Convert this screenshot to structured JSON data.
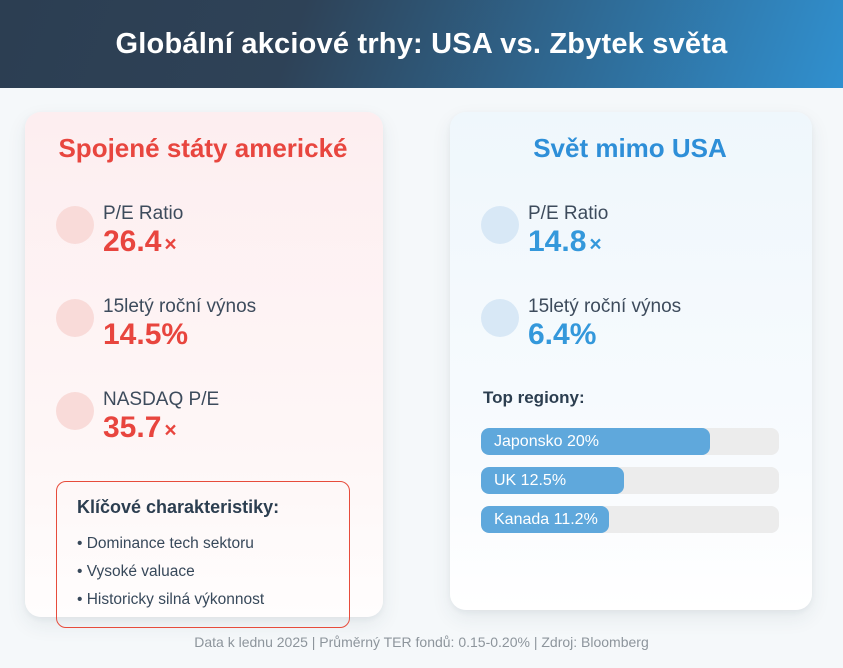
{
  "header": {
    "title": "Globální akciové trhy: USA vs. Zbytek světa"
  },
  "usa_card": {
    "title": "Spojené státy americké",
    "accent_color": "#e8453e",
    "circle_color": "#f9dbd9",
    "stats": [
      {
        "label": "P/E Ratio",
        "value": "26.4",
        "suffix": "×"
      },
      {
        "label": "15letý roční výnos",
        "value": "14.5%",
        "suffix": ""
      },
      {
        "label": "NASDAQ P/E",
        "value": "35.7",
        "suffix": "×"
      }
    ],
    "keybox": {
      "title": "Klíčové charakteristiky:",
      "bullets": [
        "Dominance tech sektoru",
        "Vysoké valuace",
        "Historicky silná výkonnost"
      ]
    }
  },
  "world_card": {
    "title": "Svět mimo USA",
    "accent_color": "#3498db",
    "circle_color": "#d8e8f6",
    "bar_fill_color": "#5fa8dc",
    "stats": [
      {
        "label": "P/E Ratio",
        "value": "14.8",
        "suffix": "×"
      },
      {
        "label": "15letý roční výnos",
        "value": "6.4%",
        "suffix": ""
      }
    ],
    "regions": {
      "heading": "Top regiony:",
      "scale_max": 26,
      "bars": [
        {
          "label": "Japonsko 20%",
          "value": 20
        },
        {
          "label": "UK 12.5%",
          "value": 12.5
        },
        {
          "label": "Kanada 11.2%",
          "value": 11.2
        }
      ]
    }
  },
  "footer": {
    "text": "Data k lednu 2025 | Průměrný TER fondů: 0.15-0.20% | Zdroj: Bloomberg"
  },
  "chart_data": {
    "type": "bar",
    "title": "Globální akciové trhy: USA vs. Zbytek světa",
    "panels": [
      {
        "name": "Spojené státy americké",
        "metrics": {
          "P/E Ratio": "26.4×",
          "15letý roční výnos": "14.5%",
          "NASDAQ P/E": "35.7×"
        },
        "key_characteristics": [
          "Dominance tech sektoru",
          "Vysoké valuace",
          "Historicky silná výkonnost"
        ]
      },
      {
        "name": "Svět mimo USA",
        "metrics": {
          "P/E Ratio": "14.8×",
          "15letý roční výnos": "6.4%"
        },
        "bar": {
          "title": "Top regiony:",
          "categories": [
            "Japonsko",
            "UK",
            "Kanada"
          ],
          "values": [
            20,
            12.5,
            11.2
          ],
          "unit": "%",
          "xlim": [
            0,
            26
          ],
          "orientation": "horizontal"
        }
      }
    ],
    "source_note": "Data k lednu 2025 | Průměrný TER fondů: 0.15-0.20% | Zdroj: Bloomberg"
  }
}
